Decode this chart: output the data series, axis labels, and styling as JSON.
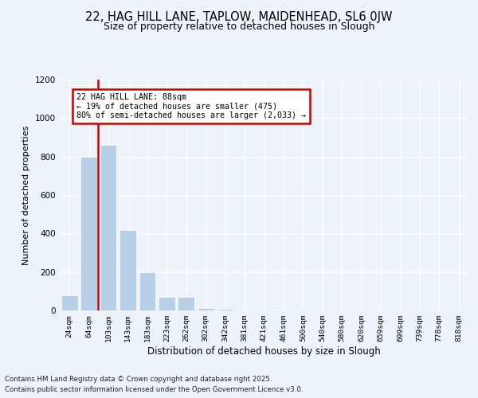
{
  "title": "22, HAG HILL LANE, TAPLOW, MAIDENHEAD, SL6 0JW",
  "subtitle": "Size of property relative to detached houses in Slough",
  "xlabel": "Distribution of detached houses by size in Slough",
  "ylabel": "Number of detached properties",
  "annotation_line1": "22 HAG HILL LANE: 88sqm",
  "annotation_line2": "← 19% of detached houses are smaller (475)",
  "annotation_line3": "80% of semi-detached houses are larger (2,033) →",
  "categories": [
    "24sqm",
    "64sqm",
    "103sqm",
    "143sqm",
    "183sqm",
    "223sqm",
    "262sqm",
    "302sqm",
    "342sqm",
    "381sqm",
    "421sqm",
    "461sqm",
    "500sqm",
    "540sqm",
    "580sqm",
    "620sqm",
    "659sqm",
    "699sqm",
    "739sqm",
    "778sqm",
    "818sqm"
  ],
  "values": [
    80,
    800,
    860,
    420,
    200,
    70,
    70,
    14,
    8,
    5,
    4,
    3,
    2,
    2,
    2,
    2,
    1,
    1,
    1,
    1,
    1
  ],
  "bar_color": "#b8cfe8",
  "vline_x": 1.45,
  "vline_color": "#cc0000",
  "box_color": "#cc0000",
  "ylim": [
    0,
    1200
  ],
  "yticks": [
    0,
    200,
    400,
    600,
    800,
    1000,
    1200
  ],
  "footer_line1": "Contains HM Land Registry data © Crown copyright and database right 2025.",
  "footer_line2": "Contains public sector information licensed under the Open Government Licence v3.0.",
  "bg_color": "#eef2f9",
  "plot_bg_color": "#eef2f9"
}
